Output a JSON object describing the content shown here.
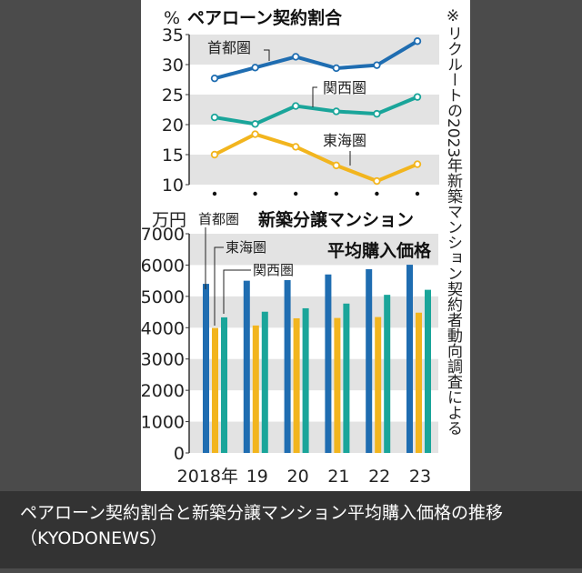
{
  "chart_data": [
    {
      "type": "line",
      "title": "ペアローン契約割合",
      "ylabel": "%",
      "ylim": [
        10,
        35
      ],
      "yticks": [
        "35",
        "30",
        "25",
        "20",
        "15",
        "10"
      ],
      "x": [
        "2018",
        "2019",
        "2020",
        "2021",
        "2022",
        "2023"
      ],
      "series": [
        {
          "name": "首都圏",
          "color": "#1f6db1",
          "values": [
            27.7,
            29.5,
            31.3,
            29.4,
            29.9,
            33.9
          ]
        },
        {
          "name": "関西圏",
          "color": "#1aa59a",
          "values": [
            21.2,
            20.1,
            23.1,
            22.2,
            21.8,
            24.6
          ]
        },
        {
          "name": "東海圏",
          "color": "#f2b51e",
          "values": [
            15.0,
            18.4,
            16.3,
            13.2,
            10.6,
            13.4
          ]
        }
      ]
    },
    {
      "type": "bar",
      "title": "新築分譲マンション",
      "title2": "平均購入価格",
      "ylabel": "万円",
      "ylim": [
        0,
        7000
      ],
      "yticks": [
        "7000",
        "6000",
        "5000",
        "4000",
        "3000",
        "2000",
        "1000",
        "0"
      ],
      "categories": [
        "2018年",
        "19",
        "20",
        "21",
        "22",
        "23"
      ],
      "series": [
        {
          "name": "首都圏",
          "color": "#1f6db1",
          "values": [
            5400,
            5500,
            5520,
            5700,
            5870,
            6010
          ]
        },
        {
          "name": "東海圏",
          "color": "#f2b51e",
          "values": [
            3990,
            4070,
            4300,
            4310,
            4340,
            4480
          ]
        },
        {
          "name": "関西圏",
          "color": "#1aa59a",
          "values": [
            4330,
            4510,
            4620,
            4770,
            5050,
            5210
          ]
        }
      ]
    }
  ],
  "note": "※リクルートの2023年新築マンション契約者動向調査による",
  "caption": {
    "line1": "ペアローン契約割合と新築分譲マンション平均購入価格の推移",
    "line2": "（KYODONEWS）"
  }
}
